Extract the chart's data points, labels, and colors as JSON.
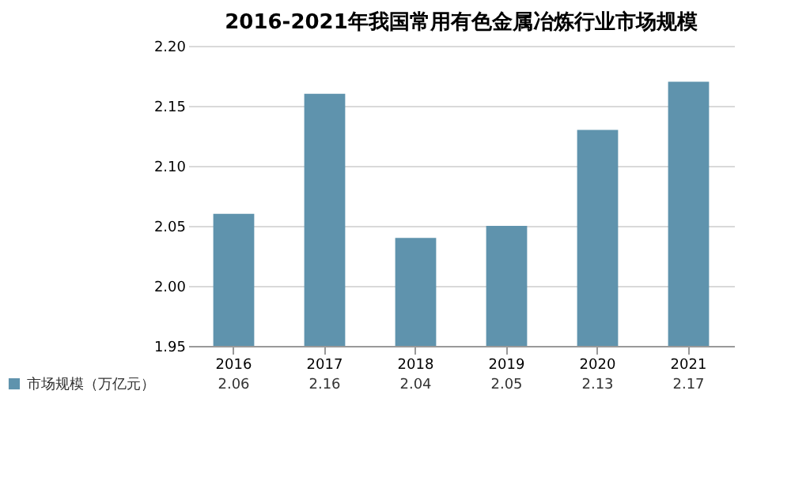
{
  "chart_data": {
    "type": "bar",
    "title": "2016-2021年我国常用有色金属冶炼行业市场规模",
    "categories": [
      "2016",
      "2017",
      "2018",
      "2019",
      "2020",
      "2021"
    ],
    "series": [
      {
        "name": "市场规模（万亿元）",
        "color": "#5f93ad",
        "values": [
          2.06,
          2.16,
          2.04,
          2.05,
          2.13,
          2.17
        ]
      }
    ],
    "ylim": [
      1.95,
      2.2
    ],
    "yticks": [
      1.95,
      {
        "value": 2,
        "label": "2.00"
      },
      2.05,
      {
        "value": 2.1,
        "label": "2.10"
      },
      2.15,
      {
        "value": 2.2,
        "label": "2.20"
      }
    ],
    "grid": "y",
    "data_labels": true,
    "legend": "bottom"
  }
}
